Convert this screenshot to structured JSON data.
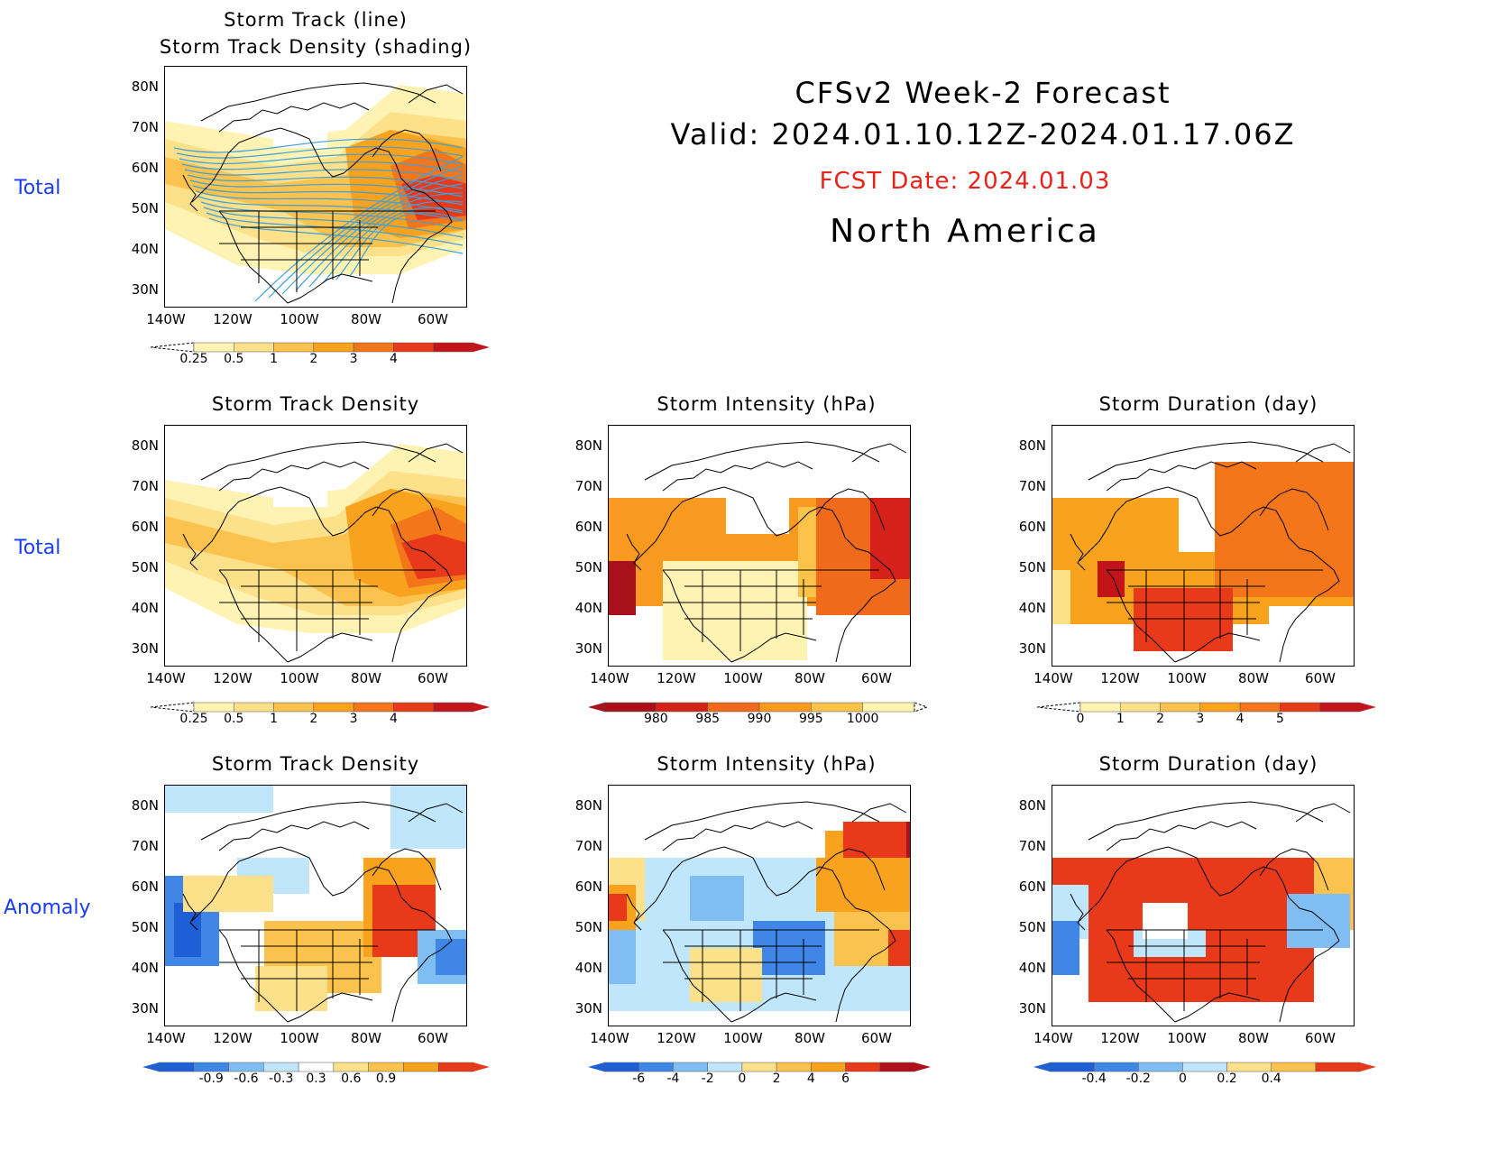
{
  "header": {
    "title": "CFSv2 Week-2 Forecast",
    "valid": "Valid: 2024.01.10.12Z-2024.01.17.06Z",
    "fcst_date": "FCST Date: 2024.01.03",
    "region": "North America"
  },
  "row_labels": [
    "Total",
    "Total",
    "Anomaly"
  ],
  "lat_ticks": [
    "80N",
    "70N",
    "60N",
    "50N",
    "40N",
    "30N"
  ],
  "lon_ticks": [
    "140W",
    "120W",
    "100W",
    "80W",
    "60W"
  ],
  "panels": {
    "p1": {
      "title_line1": "Storm Track (line)",
      "title_line2": "Storm Track Density (shading)"
    },
    "p2": {
      "title": "Storm Track Density"
    },
    "p3": {
      "title": "Storm Intensity (hPa)"
    },
    "p4": {
      "title": "Storm Duration (day)"
    },
    "p5": {
      "title": "Storm Track Density"
    },
    "p6": {
      "title": "Storm Intensity (hPa)"
    },
    "p7": {
      "title": "Storm Duration (day)"
    }
  },
  "colorbars": {
    "density": {
      "labels": [
        "0.25",
        "0.5",
        "1",
        "2",
        "3",
        "4"
      ],
      "colors": [
        "#fff3b3",
        "#fde08a",
        "#fbc24d",
        "#f8a21e",
        "#f4761a",
        "#e8391b",
        "#c3141a"
      ]
    },
    "intensity": {
      "labels": [
        "980",
        "985",
        "990",
        "995",
        "1000"
      ],
      "colors": [
        "#a8101a",
        "#d6211b",
        "#f06a1c",
        "#f89a20",
        "#fcc34a",
        "#fff3b3"
      ]
    },
    "duration": {
      "labels": [
        "0",
        "1",
        "2",
        "3",
        "4",
        "5"
      ],
      "colors": [
        "#fff3b3",
        "#fde08a",
        "#fbc24d",
        "#f8a21e",
        "#f4761a",
        "#e8391b",
        "#c3141a"
      ]
    },
    "density_anom": {
      "labels": [
        "-0.9",
        "-0.6",
        "-0.3",
        "0.3",
        "0.6",
        "0.9"
      ],
      "colors": [
        "#1f5fd6",
        "#3f86e6",
        "#7fbdf2",
        "#bfe6fa",
        "#ffffff",
        "#fde08a",
        "#fbc24d",
        "#f8a21e",
        "#e8391b"
      ]
    },
    "intensity_anom": {
      "labels": [
        "-6",
        "-4",
        "-2",
        "0",
        "2",
        "4",
        "6"
      ],
      "colors": [
        "#1f5fd6",
        "#3f86e6",
        "#7fbdf2",
        "#bfe6fa",
        "#fde08a",
        "#fbc24d",
        "#f8a21e",
        "#e8391b",
        "#b0101a"
      ]
    },
    "duration_anom": {
      "labels": [
        "-0.4",
        "-0.2",
        "0",
        "0.2",
        "0.4"
      ],
      "colors": [
        "#1f5fd6",
        "#3f86e6",
        "#7fbdf2",
        "#bfe6fa",
        "#fde08a",
        "#fbc24d",
        "#e8391b"
      ]
    }
  }
}
